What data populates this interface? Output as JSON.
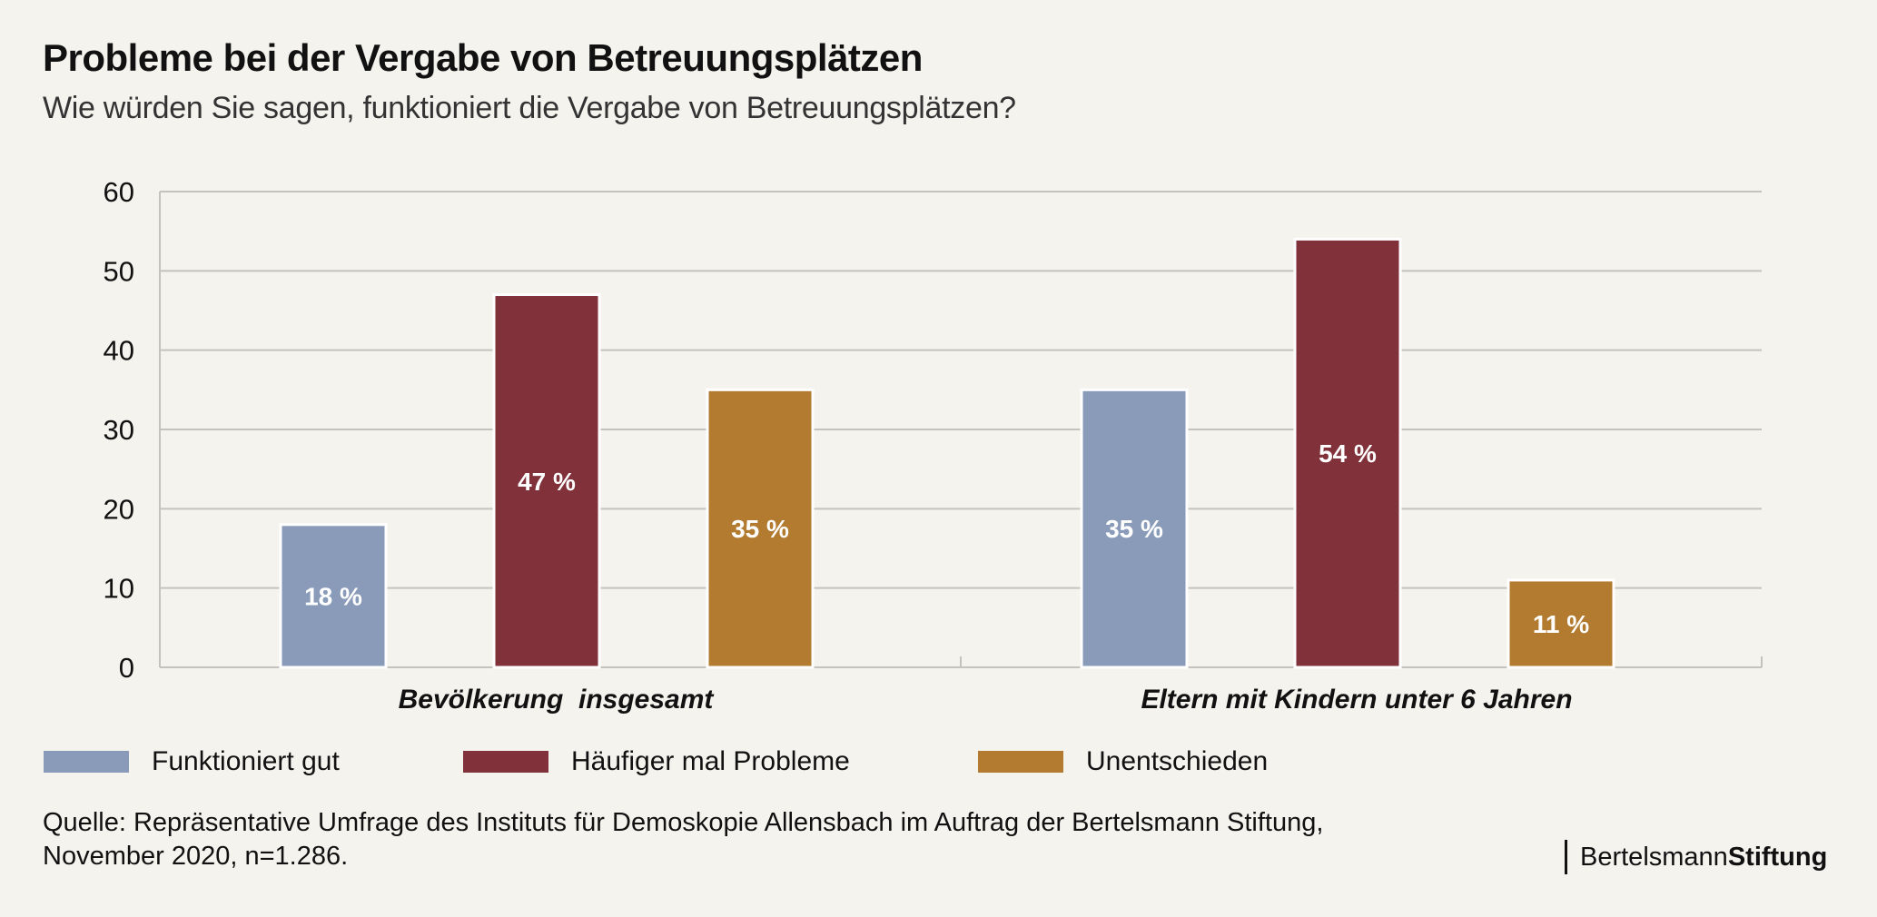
{
  "header": {
    "title": "Probleme bei der Vergabe von Betreuungsplätzen",
    "subtitle": "Wie würden Sie sagen, funktioniert die Vergabe von Betreuungsplätzen?"
  },
  "legend": [
    {
      "label": "Funktioniert gut",
      "color": "#8a9bb9"
    },
    {
      "label": "Häufiger mal Probleme",
      "color": "#80313a"
    },
    {
      "label": "Unentschieden",
      "color": "#b27b2f"
    }
  ],
  "footer": {
    "source_line1": "Quelle: Repräsentative Umfrage des Instituts für Demoskopie Allensbach im Auftrag der Bertelsmann Stiftung,",
    "source_line2": "November 2020, n=1.286.",
    "brand_regular": "Bertelsmann",
    "brand_bold": "Stiftung"
  },
  "chart_data": {
    "type": "bar",
    "title": "Probleme bei der Vergabe von Betreuungsplätzen",
    "subtitle": "Wie würden Sie sagen, funktioniert die Vergabe von Betreuungsplätzen?",
    "xlabel": "",
    "ylabel": "",
    "ylim": [
      0,
      60
    ],
    "yticks": [
      0,
      10,
      20,
      30,
      40,
      50,
      60
    ],
    "grid": true,
    "legend_position": "bottom-left",
    "categories": [
      "Bevölkerung  insgesamt",
      "Eltern mit Kindern unter 6 Jahren"
    ],
    "series": [
      {
        "name": "Funktioniert gut",
        "color": "#8a9bb9",
        "values": [
          18,
          35
        ],
        "labels": [
          "18 %",
          "35 %"
        ]
      },
      {
        "name": "Häufiger mal Probleme",
        "color": "#80313a",
        "values": [
          47,
          54
        ],
        "labels": [
          "47 %",
          "54 %"
        ]
      },
      {
        "name": "Unentschieden",
        "color": "#b27b2f",
        "values": [
          35,
          11
        ],
        "labels": [
          "35 %",
          "11 %"
        ]
      }
    ]
  }
}
